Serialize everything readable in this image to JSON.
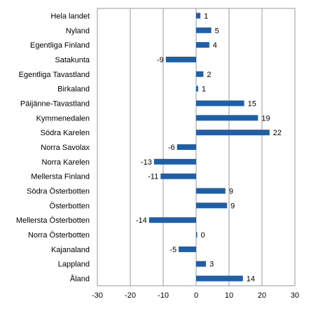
{
  "chart_data": {
    "type": "bar",
    "orientation": "horizontal",
    "categories": [
      "Hela landet",
      "Nyland",
      "Egentliga Finland",
      "Satakunta",
      "Egentliga Tavastland",
      "Birkaland",
      "Päijänne-Tavastland",
      "Kymmenedalen",
      "Södra Karelen",
      "Norra Savolax",
      "Norra Karelen",
      "Mellersta Finland",
      "Södra Österbotten",
      "Österbotten",
      "Mellersta Österbotten",
      "Norra Österbotten",
      "Kajanaland",
      "Lappland",
      "Åland"
    ],
    "values": [
      1.3,
      4.6,
      4.0,
      -9.2,
      2.2,
      0.6,
      14.6,
      18.8,
      22.3,
      -5.8,
      -12.8,
      -10.8,
      8.9,
      9.4,
      -14.3,
      0.2,
      -5.3,
      3.0,
      14.2
    ],
    "value_labels": [
      "1",
      "5",
      "4",
      "-9",
      "2",
      "1",
      "15",
      "19",
      "22",
      "-6",
      "-13",
      "-11",
      "9",
      "9",
      "-14",
      "0",
      "-5",
      "3",
      "14"
    ],
    "xlim": [
      -30,
      30
    ],
    "xticks": [
      -30,
      -20,
      -10,
      0,
      10,
      20,
      30
    ],
    "xtick_labels": [
      "-30",
      "-20",
      "-10",
      "0",
      "10",
      "20",
      "30"
    ],
    "grid": "vertical",
    "bar_color": "#1f5fa8",
    "grid_color": "#999999",
    "title": "",
    "xlabel": "",
    "ylabel": ""
  }
}
